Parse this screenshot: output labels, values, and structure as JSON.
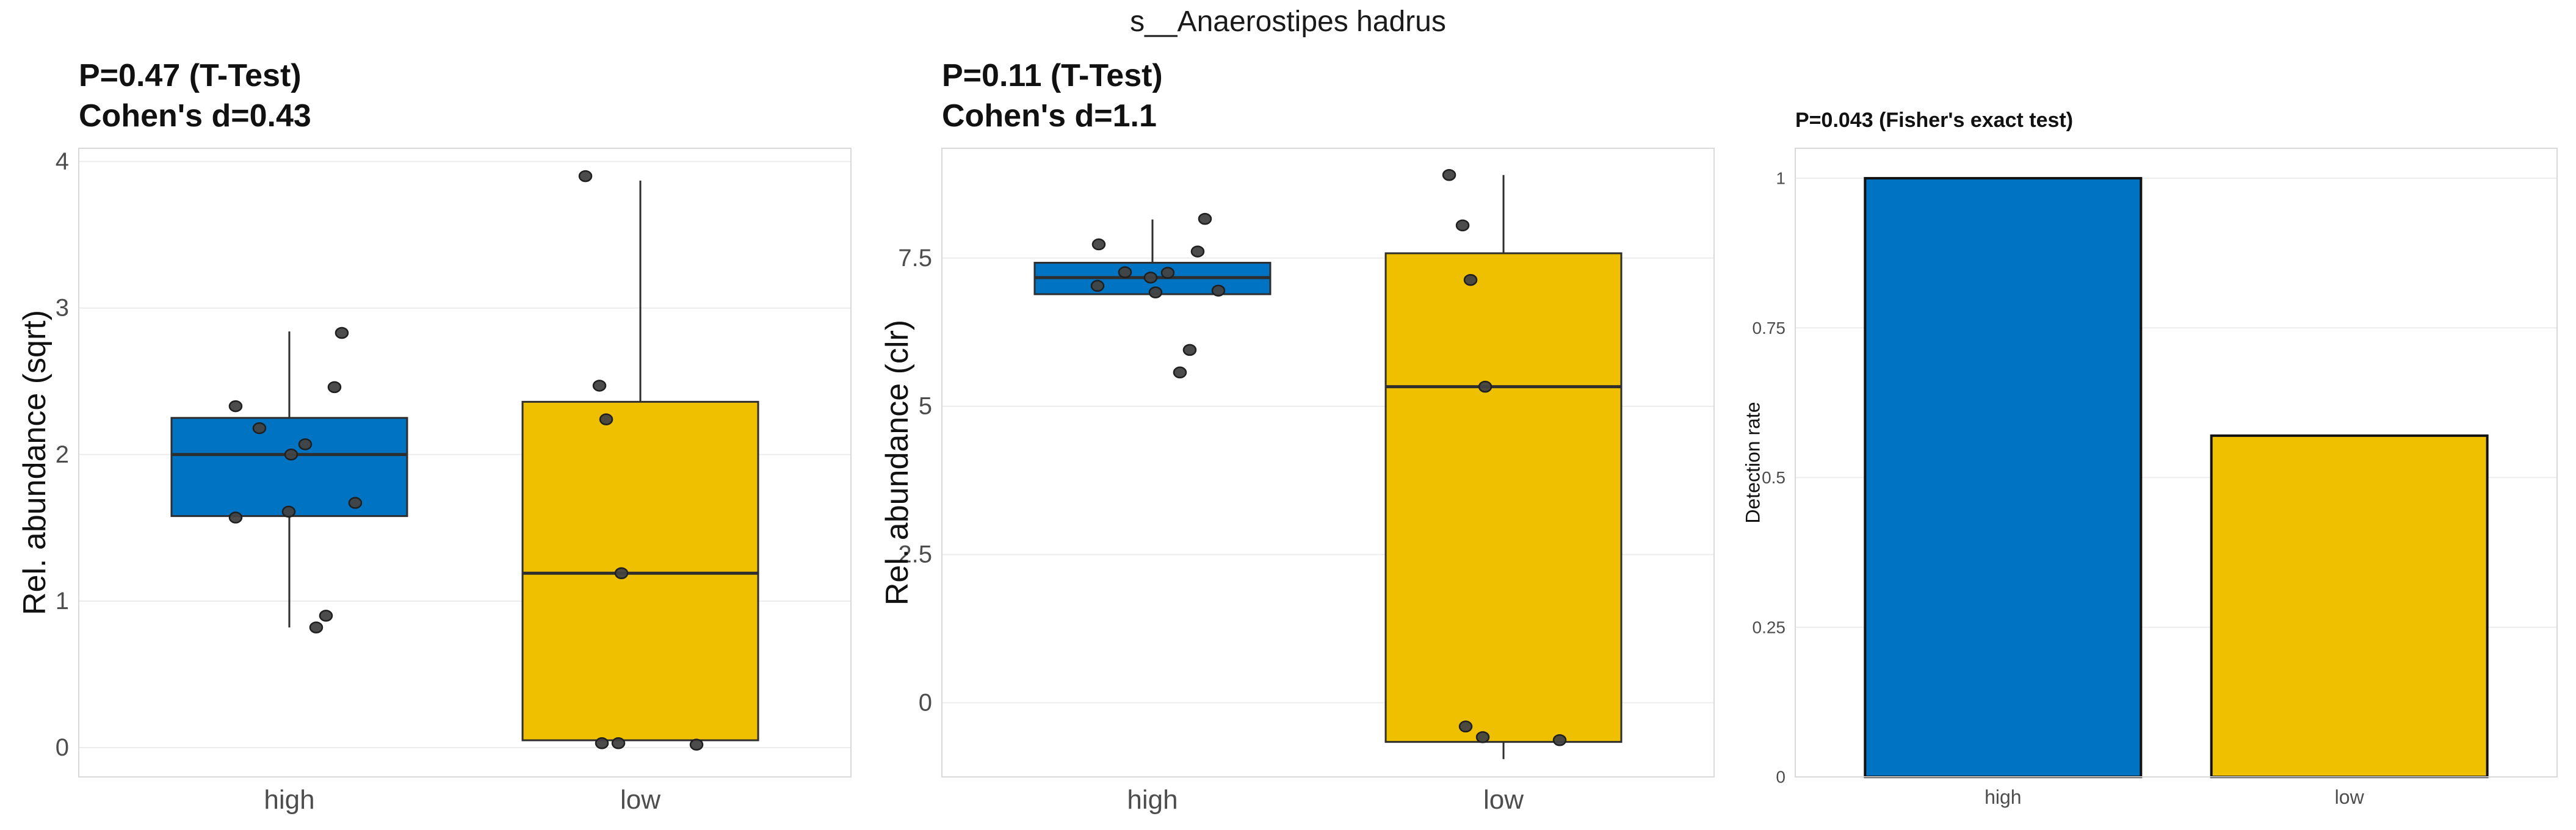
{
  "figure": {
    "title": "s__Anaerostipes hadrus",
    "background": "#ffffff"
  },
  "style": {
    "color_high": "#0073C2",
    "color_low": "#EFC000",
    "point_fill": "#424242",
    "point_stroke": "#1f1f1f",
    "grid_color": "#ececec",
    "panel_border_color": "#d9d9d9",
    "box_stroke": "#2e2e2e",
    "bar_stroke": "#111111",
    "axis_text_color": "#4d4d4d"
  },
  "chart_data": [
    {
      "type": "boxplot",
      "title_line1": "P=0.47 (T-Test)",
      "title_line2": "Cohen's d=0.43",
      "ylabel": "Rel. abundance (sqrt)",
      "categories": [
        "high",
        "low"
      ],
      "yticks": [
        0,
        1,
        2,
        3,
        4
      ],
      "ytick_labels": [
        "0",
        "1",
        "2",
        "3",
        "4"
      ],
      "ylim": [
        -0.2,
        4.09
      ],
      "grid": "major-y",
      "legend": "none",
      "series": [
        {
          "category": "high",
          "color": "#0073C2",
          "q1": 1.58,
          "median": 2.0,
          "q3": 2.25,
          "whisker_low": 0.82,
          "whisker_high": 2.84,
          "points": [
            [
              -88,
              2.33
            ],
            [
              -49,
              2.18
            ],
            [
              26,
              2.07
            ],
            [
              3,
              2.0
            ],
            [
              -88,
              1.57
            ],
            [
              -1,
              1.61
            ],
            [
              108,
              1.67
            ],
            [
              74,
              2.46
            ],
            [
              86,
              2.83
            ],
            [
              60,
              0.9
            ],
            [
              44,
              0.82
            ]
          ]
        },
        {
          "category": "low",
          "color": "#EFC000",
          "q1": 0.05,
          "median": 1.19,
          "q3": 2.36,
          "whisker_low": null,
          "whisker_high": 3.87,
          "points": [
            [
              -90,
              3.9
            ],
            [
              -67,
              2.47
            ],
            [
              -56,
              2.24
            ],
            [
              -31,
              1.19
            ],
            [
              -63,
              0.03
            ],
            [
              -36,
              0.03
            ],
            [
              92,
              0.02
            ]
          ]
        }
      ]
    },
    {
      "type": "boxplot",
      "title_line1": "P=0.11 (T-Test)",
      "title_line2": "Cohen's d=1.1",
      "ylabel": "Rel. abundance (clr)",
      "categories": [
        "high",
        "low"
      ],
      "yticks": [
        0,
        2.5,
        5,
        7.5
      ],
      "ytick_labels": [
        "0",
        "2.5",
        "5",
        "7.5"
      ],
      "ylim": [
        -1.25,
        9.35
      ],
      "grid": "major-y",
      "legend": "none",
      "series": [
        {
          "category": "high",
          "color": "#0073C2",
          "q1": 6.89,
          "median": 7.17,
          "q3": 7.42,
          "whisker_low": null,
          "whisker_high": 8.15,
          "points": [
            [
              -88,
              7.73
            ],
            [
              -45,
              7.26
            ],
            [
              -3,
              7.17
            ],
            [
              25,
              7.25
            ],
            [
              -90,
              7.03
            ],
            [
              5,
              6.92
            ],
            [
              86,
              8.16
            ],
            [
              74,
              7.61
            ],
            [
              108,
              6.95
            ],
            [
              61,
              5.95
            ],
            [
              45,
              5.57
            ]
          ]
        },
        {
          "category": "low",
          "color": "#EFC000",
          "q1": -0.66,
          "median": 5.33,
          "q3": 7.58,
          "whisker_low": -0.95,
          "whisker_high": 8.9,
          "points": [
            [
              -89,
              8.9
            ],
            [
              -67,
              8.05
            ],
            [
              -54,
              7.13
            ],
            [
              -30,
              5.33
            ],
            [
              -62,
              -0.4
            ],
            [
              -34,
              -0.58
            ],
            [
              92,
              -0.63
            ]
          ]
        }
      ]
    },
    {
      "type": "bar",
      "title_line1": "P=0.043 (Fisher's exact test)",
      "ylabel": "Detection rate",
      "categories": [
        "high",
        "low"
      ],
      "values": [
        1.0,
        0.57
      ],
      "colors": [
        "#0073C2",
        "#EFC000"
      ],
      "yticks": [
        0,
        0.25,
        0.5,
        0.75,
        1
      ],
      "ytick_labels": [
        "0",
        "0.25",
        "0.5",
        "0.75",
        "1"
      ],
      "ylim": [
        0,
        1.05
      ],
      "grid": "major-y",
      "legend": "none"
    }
  ]
}
